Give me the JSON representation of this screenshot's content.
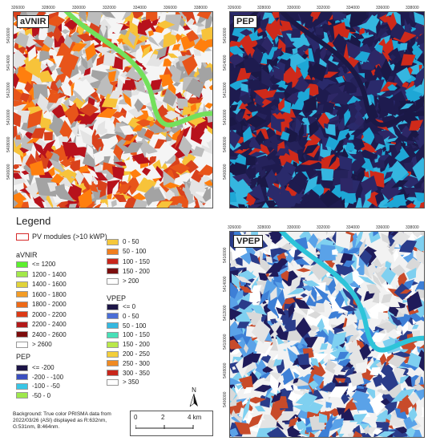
{
  "panels": [
    {
      "id": "aVNIR",
      "label": "aVNIR",
      "x_ticks": [
        "326000",
        "328000",
        "330000",
        "332000",
        "334000",
        "336000",
        "338000"
      ],
      "y_ticks": [
        "5416000",
        "5414000",
        "5412000",
        "5410000",
        "5408000",
        "5406000"
      ],
      "colors": [
        "#f5f5f5",
        "#ff7f0e",
        "#e8551a",
        "#d9421c",
        "#b7121c",
        "#f7c33a",
        "#bdbdbd",
        "#a3a3a3",
        "#e4e4e4"
      ],
      "river_color": "#73e05b"
    },
    {
      "id": "PEP",
      "label": "PEP",
      "x_ticks": [
        "326000",
        "328000",
        "330000",
        "332000",
        "334000",
        "336000",
        "338000"
      ],
      "y_ticks": [
        "5416000",
        "5414000",
        "5412000",
        "5410000",
        "5408000",
        "5406000"
      ],
      "colors": [
        "#1e1b4f",
        "#1ea7d6",
        "#2d2766",
        "#25225b",
        "#35b6e0",
        "#1a1846",
        "#cf2a1a",
        "#2a2a6b"
      ],
      "river_color": "#1a1846"
    },
    {
      "id": "VPEP",
      "label": "VPEP",
      "x_ticks": [
        "326000",
        "328000",
        "330000",
        "332000",
        "334000",
        "336000",
        "338000"
      ],
      "y_ticks": [
        "5416000",
        "5414000",
        "5412000",
        "5410000",
        "5408000",
        "5406000"
      ],
      "colors": [
        "#f2f2f2",
        "#1f1b5a",
        "#3d7fd6",
        "#2a3c8a",
        "#d9d9d9",
        "#5aa2e8",
        "#ffffff",
        "#e4e4e4",
        "#c84b2a",
        "#7fd0f0"
      ],
      "river_color": "#2ec4d9"
    }
  ],
  "legend": {
    "title": "Legend",
    "pv_label": "PV modules (>10 kWP)",
    "groups": [
      {
        "title": "aVNIR",
        "entries": [
          {
            "label": "<= 1200",
            "color": "#5cf02e"
          },
          {
            "label": "1200 - 1400",
            "color": "#a3e84a"
          },
          {
            "label": "1400 - 1600",
            "color": "#e0d33a"
          },
          {
            "label": "1600 - 1800",
            "color": "#f39c26"
          },
          {
            "label": "1800 - 2000",
            "color": "#ee6a18"
          },
          {
            "label": "2000 - 2200",
            "color": "#dc3a16"
          },
          {
            "label": "2200 - 2400",
            "color": "#b31a1a"
          },
          {
            "label": "2400 - 2600",
            "color": "#7d0c0c"
          },
          {
            "label": "> 2600",
            "color": "#ffffff"
          }
        ]
      },
      {
        "title": "PEP",
        "entries": [
          {
            "label": "<= -200",
            "color": "#1c1546"
          },
          {
            "label": "-200 - -100",
            "color": "#3a4fc0"
          },
          {
            "label": "-100 - -50",
            "color": "#38c6e6"
          },
          {
            "label": "-50 - 0",
            "color": "#9ee84c"
          }
        ]
      },
      {
        "title": "",
        "entries": [
          {
            "label": "0 - 50",
            "color": "#f5c73a"
          },
          {
            "label": "50 - 100",
            "color": "#f07e1e"
          },
          {
            "label": "100 - 150",
            "color": "#c8261b"
          },
          {
            "label": "150 - 200",
            "color": "#7b0d0d"
          },
          {
            "label": "> 200",
            "color": "#ffffff"
          }
        ]
      },
      {
        "title": "VPEP",
        "entries": [
          {
            "label": "<= 0",
            "color": "#1c1546"
          },
          {
            "label": "0 - 50",
            "color": "#4a6ed6"
          },
          {
            "label": "50 - 100",
            "color": "#35b8e0"
          },
          {
            "label": "100 - 150",
            "color": "#48e0b8"
          },
          {
            "label": "150 - 200",
            "color": "#b9e84a"
          },
          {
            "label": "200 - 250",
            "color": "#f3cf3a"
          },
          {
            "label": "250 - 300",
            "color": "#f08a22"
          },
          {
            "label": "300 - 350",
            "color": "#c8261b"
          },
          {
            "label": "> 350",
            "color": "#ffffff"
          }
        ]
      }
    ]
  },
  "north_label": "N",
  "scalebar": {
    "labels": [
      "0",
      "2",
      "4 km"
    ]
  },
  "credit": "Background: True color PRISMA data from 2022/03/26 (ASI) displayed as R:632nm, G:531nm, B:464nm."
}
